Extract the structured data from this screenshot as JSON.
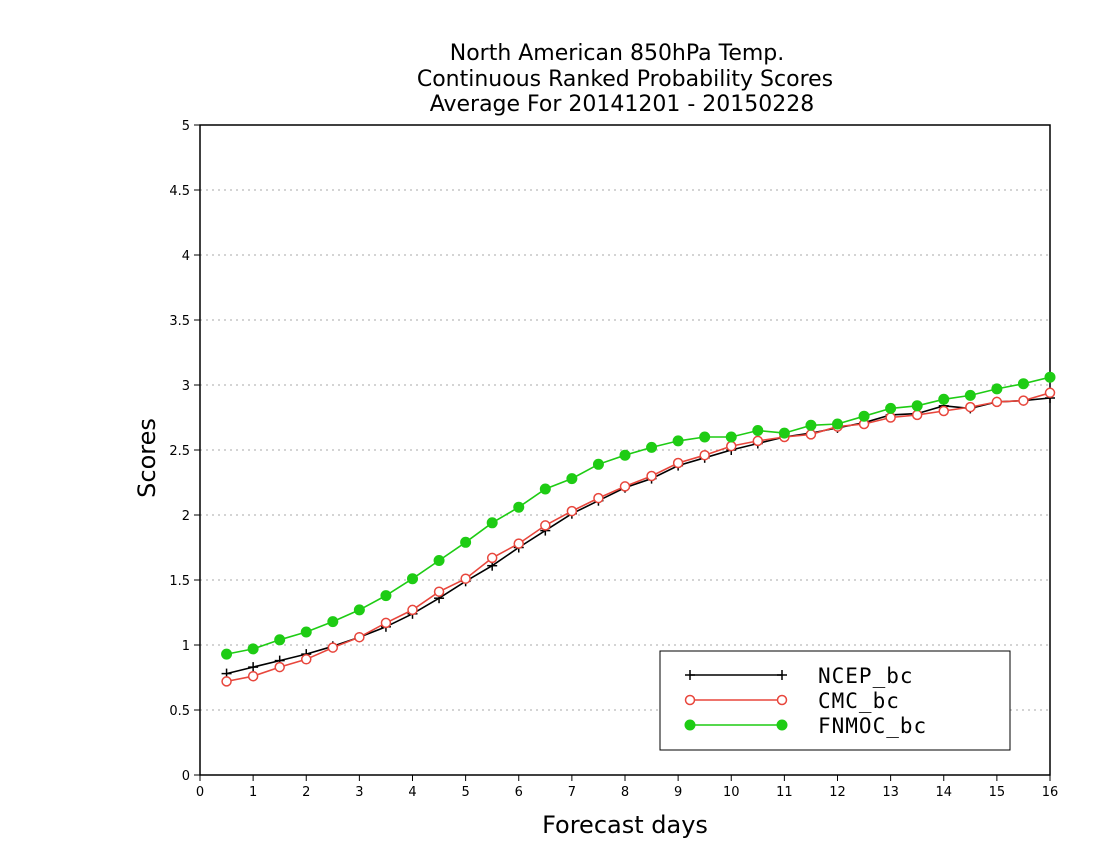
{
  "chart_data": {
    "type": "line",
    "title": [
      "North American 850hPa Temp.",
      "Continuous Ranked Probability Scores",
      "Average For 20141201 - 20150228"
    ],
    "xlabel": "Forecast days",
    "ylabel": "Scores",
    "xlim": [
      0,
      16
    ],
    "ylim": [
      0,
      5
    ],
    "xticks": [
      "0",
      "1",
      "2",
      "3",
      "4",
      "5",
      "6",
      "7",
      "8",
      "9",
      "10",
      "11",
      "12",
      "13",
      "14",
      "15",
      "16"
    ],
    "yticks": [
      "0",
      "0.5",
      "1",
      "1.5",
      "2",
      "2.5",
      "3",
      "3.5",
      "4",
      "4.5",
      "5"
    ],
    "grid": true,
    "legend_position": "bottom-right",
    "x": [
      0.5,
      1,
      1.5,
      2,
      2.5,
      3,
      3.5,
      4,
      4.5,
      5,
      5.5,
      6,
      6.5,
      7,
      7.5,
      8,
      8.5,
      9,
      9.5,
      10,
      10.5,
      11,
      11.5,
      12,
      12.5,
      13,
      13.5,
      14,
      14.5,
      15,
      15.5,
      16
    ],
    "series": [
      {
        "name": "NCEP_bc",
        "color": "#000000",
        "marker": "plus",
        "values": [
          0.78,
          0.83,
          0.88,
          0.93,
          0.99,
          1.06,
          1.14,
          1.24,
          1.36,
          1.49,
          1.61,
          1.75,
          1.88,
          2.01,
          2.11,
          2.21,
          2.28,
          2.38,
          2.44,
          2.5,
          2.55,
          2.6,
          2.63,
          2.67,
          2.71,
          2.77,
          2.78,
          2.84,
          2.82,
          2.87,
          2.88,
          2.9
        ]
      },
      {
        "name": "CMC_bc",
        "color": "#e8463c",
        "marker": "open-circle",
        "values": [
          0.72,
          0.76,
          0.83,
          0.89,
          0.98,
          1.06,
          1.17,
          1.27,
          1.41,
          1.51,
          1.67,
          1.78,
          1.92,
          2.03,
          2.13,
          2.22,
          2.3,
          2.4,
          2.46,
          2.53,
          2.57,
          2.6,
          2.62,
          2.68,
          2.7,
          2.75,
          2.77,
          2.8,
          2.83,
          2.87,
          2.88,
          2.94
        ]
      },
      {
        "name": "FNMOC_bc",
        "color": "#1ecc14",
        "marker": "filled-circle",
        "values": [
          0.93,
          0.97,
          1.04,
          1.1,
          1.18,
          1.27,
          1.38,
          1.51,
          1.65,
          1.79,
          1.94,
          2.06,
          2.2,
          2.28,
          2.39,
          2.46,
          2.52,
          2.57,
          2.6,
          2.6,
          2.65,
          2.63,
          2.69,
          2.7,
          2.76,
          2.82,
          2.84,
          2.89,
          2.92,
          2.97,
          3.01,
          3.06
        ]
      }
    ]
  }
}
